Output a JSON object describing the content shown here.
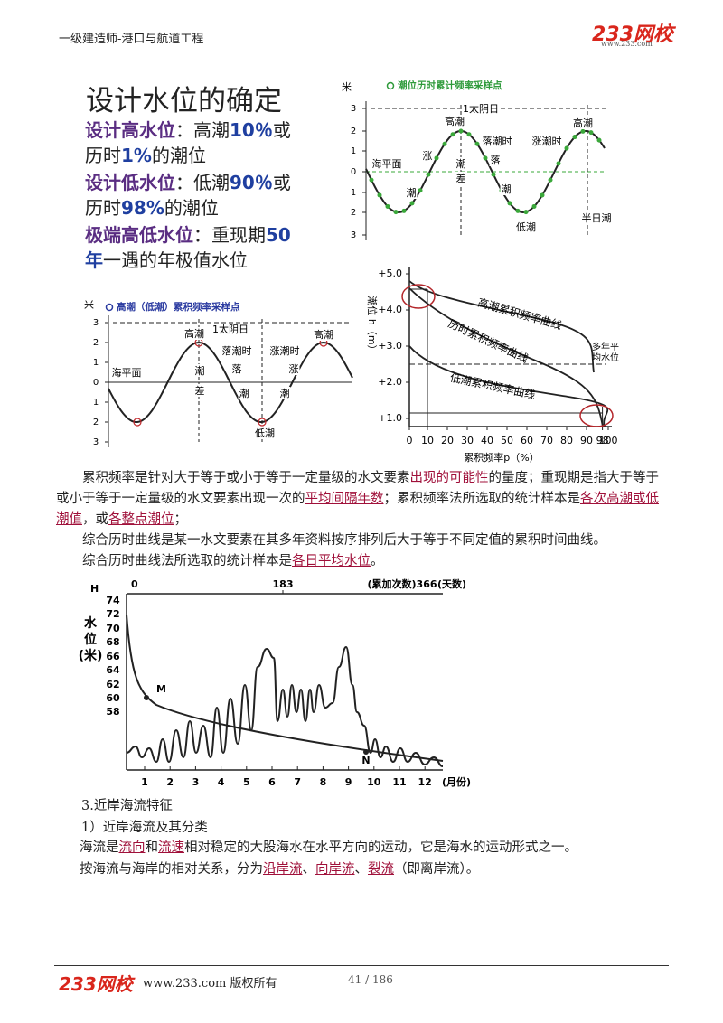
{
  "header": {
    "title": "一级建造师-港口与航道工程",
    "logo": "233网校",
    "logo_url": "www.233.com"
  },
  "slide": {
    "title": "设计水位的确定",
    "lines": [
      [
        "设计高水位",
        "：高潮",
        "10％",
        "或"
      ],
      [
        "历时",
        "1%",
        "的潮位"
      ],
      [
        "设计低水位",
        "：低潮",
        "90％",
        "或"
      ],
      [
        "历时",
        "98%",
        "的潮位"
      ],
      [
        "极端高低水位",
        "：重现期",
        "50"
      ],
      [
        "年",
        "一遇的年极值水位"
      ]
    ]
  },
  "tide_diagram_1": {
    "legend": "潮位历时累计频率采样点",
    "y_unit": "米",
    "y_ticks": [
      "3",
      "2",
      "1",
      "0",
      "1",
      "2",
      "3"
    ],
    "labels": [
      "1太阴日",
      "高潮",
      "高潮",
      "落潮时",
      "涨潮时",
      "海平面",
      "涨",
      "潮",
      "差",
      "落",
      "潮",
      "潮",
      "低潮",
      "半日潮"
    ]
  },
  "tide_diagram_2": {
    "legend": "高潮（低潮）累积频率采样点",
    "y_unit": "米",
    "y_ticks": [
      "3",
      "2",
      "1",
      "0",
      "1",
      "2",
      "3"
    ],
    "labels": [
      "1太阴日",
      "高潮",
      "高潮",
      "落潮时",
      "涨潮时",
      "海平面",
      "潮",
      "差",
      "落",
      "潮",
      "涨",
      "潮",
      "低潮"
    ]
  },
  "frequency_diagram": {
    "y_label": "潮位 h（m）",
    "y_ticks": [
      "+5.0",
      "+4.0",
      "+3.0",
      "+2.0",
      "+1.0"
    ],
    "x_ticks": [
      "0",
      "10",
      "20",
      "30",
      "40",
      "50",
      "60",
      "70",
      "80",
      "90",
      "98",
      "100"
    ],
    "x_label": "累积频率p（%）",
    "labels": [
      "高潮累积频率曲线",
      "历时累积频率曲线",
      "低潮累积频率曲线",
      "多年平",
      "均水位"
    ]
  },
  "paragraphs": [
    [
      "累积频率是针对大于等于或小于等于一定量级的水文要素",
      "出现的可能性",
      "的量度；重现期是指大于等于或小于等于一定量级的水文要素出现一次的",
      "平均间隔年数",
      "；累积频率法所选取的统计样本是",
      "各次高潮或低潮值",
      "，或",
      "各整点潮位",
      "；"
    ],
    [
      "综合历时曲线是某一水文要素在其多年资料按序排列后大于等于不同定值的累积时间曲线。"
    ],
    [
      "综合历时曲线法所选取的统计样本是",
      "各日平均水位",
      "。"
    ]
  ],
  "duration_diagram": {
    "h_label": "H",
    "top_ticks": [
      "0",
      "183",
      "(累加次数)366"
    ],
    "top_unit": "(天数)",
    "y_label": [
      "水",
      "位",
      "(米)"
    ],
    "y_ticks": [
      "74",
      "72",
      "70",
      "68",
      "66",
      "64",
      "62",
      "60",
      "58"
    ],
    "x_ticks": [
      "1",
      "2",
      "3",
      "4",
      "5",
      "6",
      "7",
      "8",
      "9",
      "10",
      "11",
      "12"
    ],
    "x_unit": "(月份)",
    "points": [
      "M",
      "N"
    ]
  },
  "section": {
    "heading": "3.近岸海流特征",
    "subheading": "1）近岸海流及其分类",
    "paragraphs": [
      [
        "海流是",
        "流向",
        "和",
        "流速",
        "相对稳定的大股海水在水平方向的运动，它是海水的运动形式之一。"
      ],
      [
        "按海流与海岸的相对关系，分为",
        "沿岸流",
        "、",
        "向岸流",
        "、",
        "裂流",
        "（即离岸流）。"
      ]
    ]
  },
  "footer": {
    "logo": "233网校",
    "copyright": "www.233.com 版权所有",
    "page": "41 / 186"
  }
}
